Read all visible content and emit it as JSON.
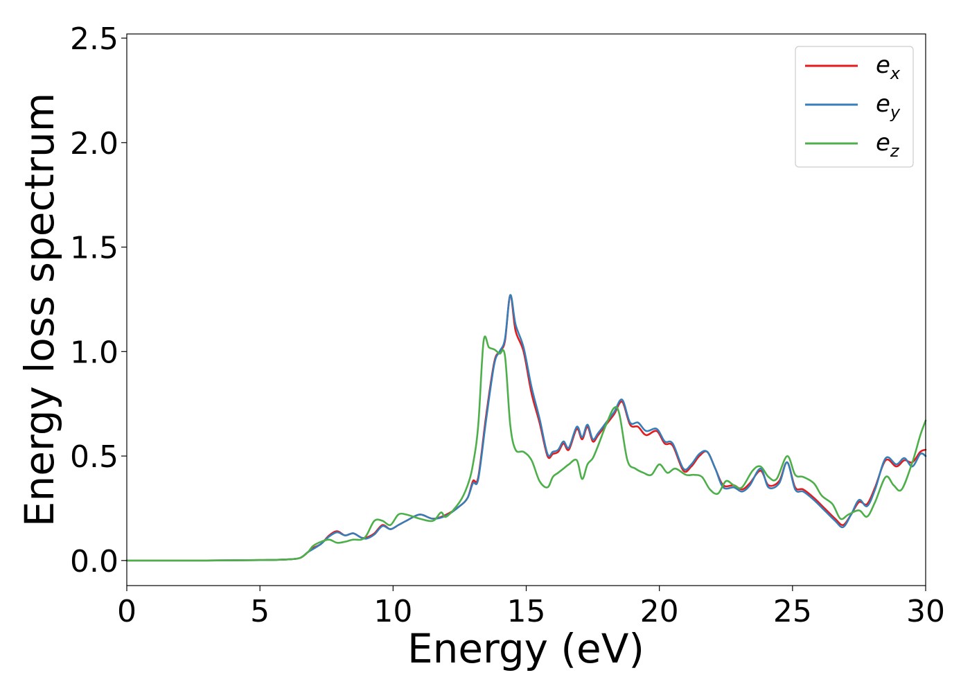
{
  "chart_data": {
    "type": "line",
    "title": "",
    "xlabel": "Energy (eV)",
    "ylabel": "Energy loss spectrum",
    "xlim": [
      0,
      30
    ],
    "ylim": [
      -0.12,
      2.52
    ],
    "xticks": [
      0,
      5,
      10,
      15,
      20,
      25,
      30
    ],
    "xtick_labels": [
      "0",
      "5",
      "10",
      "15",
      "20",
      "25",
      "30"
    ],
    "yticks": [
      0.0,
      0.5,
      1.0,
      1.5,
      2.0,
      2.5
    ],
    "ytick_labels": [
      "0.0",
      "0.5",
      "1.0",
      "1.5",
      "2.0",
      "2.5"
    ],
    "grid": false,
    "legend_position": "top-right",
    "series": [
      {
        "name": "e_x",
        "label_base": "e",
        "label_sub": "x",
        "color": "#e41a1c",
        "x": [
          0,
          3,
          5,
          6,
          6.5,
          6.8,
          7.0,
          7.3,
          7.6,
          7.9,
          8.2,
          8.5,
          8.8,
          9.0,
          9.3,
          9.6,
          9.9,
          10.2,
          10.5,
          11.0,
          11.5,
          12.0,
          12.5,
          12.8,
          13.0,
          13.2,
          13.5,
          13.8,
          14.0,
          14.2,
          14.4,
          14.6,
          14.9,
          15.2,
          15.5,
          15.8,
          16.0,
          16.2,
          16.4,
          16.6,
          16.9,
          17.1,
          17.3,
          17.5,
          17.7,
          18.0,
          18.3,
          18.6,
          18.9,
          19.2,
          19.5,
          19.9,
          20.2,
          20.5,
          20.9,
          21.2,
          21.5,
          21.8,
          22.1,
          22.4,
          22.8,
          23.1,
          23.4,
          23.8,
          24.1,
          24.5,
          24.8,
          25.1,
          25.4,
          25.8,
          26.2,
          26.6,
          26.9,
          27.2,
          27.5,
          27.8,
          28.1,
          28.5,
          28.9,
          29.2,
          29.5,
          29.8,
          30
        ],
        "y": [
          0.0,
          0.0,
          0.002,
          0.005,
          0.012,
          0.04,
          0.06,
          0.08,
          0.12,
          0.14,
          0.12,
          0.13,
          0.11,
          0.11,
          0.13,
          0.17,
          0.15,
          0.17,
          0.19,
          0.22,
          0.2,
          0.22,
          0.26,
          0.3,
          0.38,
          0.4,
          0.7,
          0.95,
          1.0,
          1.05,
          1.27,
          1.1,
          1.0,
          0.8,
          0.66,
          0.5,
          0.51,
          0.52,
          0.56,
          0.53,
          0.63,
          0.58,
          0.64,
          0.57,
          0.6,
          0.65,
          0.7,
          0.76,
          0.65,
          0.64,
          0.6,
          0.62,
          0.56,
          0.55,
          0.43,
          0.45,
          0.5,
          0.52,
          0.44,
          0.36,
          0.36,
          0.34,
          0.37,
          0.43,
          0.36,
          0.38,
          0.47,
          0.35,
          0.34,
          0.3,
          0.25,
          0.2,
          0.17,
          0.22,
          0.28,
          0.27,
          0.35,
          0.48,
          0.45,
          0.48,
          0.47,
          0.52,
          0.53
        ]
      },
      {
        "name": "e_y",
        "label_base": "e",
        "label_sub": "y",
        "color": "#377eb8",
        "x": [
          0,
          3,
          5,
          6,
          6.5,
          6.8,
          7.0,
          7.3,
          7.6,
          7.9,
          8.2,
          8.5,
          8.8,
          9.0,
          9.3,
          9.6,
          9.9,
          10.2,
          10.5,
          11.0,
          11.5,
          12.0,
          12.5,
          12.8,
          13.0,
          13.2,
          13.5,
          13.8,
          14.0,
          14.2,
          14.4,
          14.6,
          14.9,
          15.2,
          15.5,
          15.8,
          16.0,
          16.2,
          16.4,
          16.6,
          16.9,
          17.1,
          17.3,
          17.5,
          17.7,
          18.0,
          18.3,
          18.6,
          18.9,
          19.2,
          19.5,
          19.9,
          20.2,
          20.5,
          20.9,
          21.2,
          21.5,
          21.8,
          22.1,
          22.4,
          22.8,
          23.1,
          23.4,
          23.8,
          24.1,
          24.5,
          24.8,
          25.1,
          25.4,
          25.8,
          26.2,
          26.6,
          26.9,
          27.2,
          27.5,
          27.8,
          28.1,
          28.5,
          28.9,
          29.2,
          29.5,
          29.8,
          30
        ],
        "y": [
          0.0,
          0.0,
          0.002,
          0.005,
          0.012,
          0.04,
          0.055,
          0.08,
          0.115,
          0.135,
          0.12,
          0.13,
          0.11,
          0.105,
          0.125,
          0.165,
          0.15,
          0.17,
          0.19,
          0.22,
          0.2,
          0.215,
          0.26,
          0.3,
          0.37,
          0.39,
          0.68,
          0.94,
          1.0,
          1.06,
          1.27,
          1.13,
          1.02,
          0.83,
          0.68,
          0.51,
          0.52,
          0.53,
          0.57,
          0.54,
          0.64,
          0.59,
          0.65,
          0.58,
          0.61,
          0.66,
          0.71,
          0.77,
          0.66,
          0.66,
          0.62,
          0.63,
          0.57,
          0.56,
          0.44,
          0.46,
          0.51,
          0.52,
          0.44,
          0.35,
          0.35,
          0.33,
          0.36,
          0.44,
          0.35,
          0.37,
          0.47,
          0.34,
          0.33,
          0.29,
          0.24,
          0.19,
          0.16,
          0.22,
          0.29,
          0.26,
          0.34,
          0.49,
          0.46,
          0.49,
          0.45,
          0.51,
          0.5
        ]
      },
      {
        "name": "e_z",
        "label_base": "e",
        "label_sub": "z",
        "color": "#4daf4a",
        "x": [
          0,
          3,
          5,
          6,
          6.5,
          6.8,
          7.0,
          7.3,
          7.6,
          7.9,
          8.2,
          8.5,
          8.8,
          9.0,
          9.3,
          9.6,
          9.9,
          10.2,
          10.5,
          11.0,
          11.5,
          11.8,
          12.0,
          12.5,
          12.8,
          13.0,
          13.2,
          13.4,
          13.6,
          13.8,
          14.0,
          14.2,
          14.4,
          14.6,
          14.9,
          15.2,
          15.5,
          15.8,
          16.0,
          16.2,
          16.4,
          16.6,
          16.9,
          17.1,
          17.3,
          17.5,
          17.7,
          18.0,
          18.3,
          18.5,
          18.8,
          19.1,
          19.4,
          19.7,
          20.0,
          20.3,
          20.6,
          21.0,
          21.3,
          21.6,
          21.9,
          22.2,
          22.5,
          22.8,
          23.1,
          23.5,
          23.8,
          24.1,
          24.4,
          24.8,
          25.1,
          25.4,
          25.8,
          26.1,
          26.5,
          26.8,
          27.1,
          27.5,
          27.8,
          28.1,
          28.5,
          28.8,
          29.1,
          29.5,
          29.8,
          30
        ],
        "y": [
          0.0,
          0.0,
          0.002,
          0.005,
          0.012,
          0.04,
          0.07,
          0.09,
          0.1,
          0.085,
          0.09,
          0.1,
          0.1,
          0.12,
          0.19,
          0.19,
          0.17,
          0.22,
          0.22,
          0.2,
          0.19,
          0.23,
          0.21,
          0.28,
          0.36,
          0.46,
          0.65,
          1.05,
          1.02,
          1.01,
          0.99,
          0.98,
          0.65,
          0.53,
          0.52,
          0.48,
          0.38,
          0.35,
          0.4,
          0.42,
          0.44,
          0.46,
          0.48,
          0.39,
          0.46,
          0.49,
          0.55,
          0.65,
          0.73,
          0.7,
          0.48,
          0.44,
          0.42,
          0.41,
          0.46,
          0.42,
          0.44,
          0.41,
          0.41,
          0.4,
          0.34,
          0.32,
          0.38,
          0.36,
          0.35,
          0.43,
          0.45,
          0.4,
          0.39,
          0.5,
          0.41,
          0.4,
          0.37,
          0.31,
          0.27,
          0.2,
          0.22,
          0.24,
          0.21,
          0.28,
          0.4,
          0.36,
          0.34,
          0.47,
          0.6,
          0.67
        ]
      }
    ]
  }
}
